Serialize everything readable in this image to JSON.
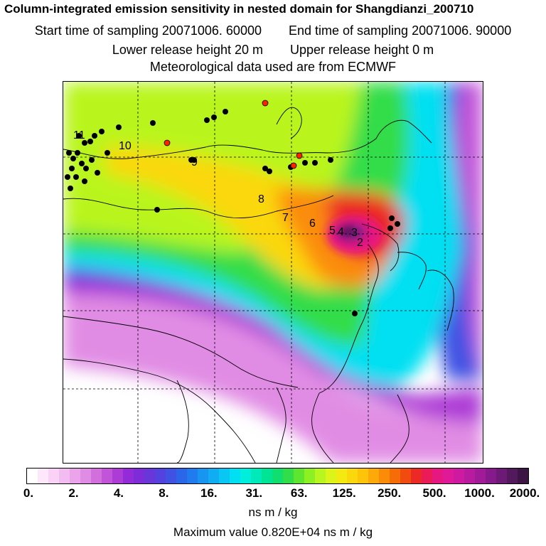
{
  "title": {
    "line1": "Column-integrated emission sensitivity in nested domain for Shangdianzi_200710",
    "start_label": "Start time of sampling 20071006. 60000",
    "end_label": "End time of sampling 20071006. 90000",
    "lower_label": "Lower release height   20 m",
    "upper_label": "Upper release height    0 m",
    "met_label": "Meteorological data used are from ECMWF"
  },
  "map": {
    "track_labels": [
      "11",
      "10",
      "9",
      "8",
      "7",
      "6",
      "5",
      "4",
      "3",
      "2"
    ],
    "colors": {
      "land_outline": "#000000",
      "black_marker": "#000000",
      "red_marker": "#ff2200",
      "grid": "#000000"
    }
  },
  "colorbar": {
    "colors": [
      "#ffffff",
      "#fde8fb",
      "#f9d2f6",
      "#f3bcf0",
      "#eba3ea",
      "#e18ce4",
      "#d36fdd",
      "#c154d8",
      "#ad3bd6",
      "#942bd9",
      "#7d2cd7",
      "#6936da",
      "#5342de",
      "#3f52e3",
      "#2c66e8",
      "#1f7bee",
      "#1894f1",
      "#11adf3",
      "#0ac6f3",
      "#00e0f2",
      "#00eedc",
      "#00eab9",
      "#00e496",
      "#10df70",
      "#31dd49",
      "#5ee52e",
      "#8df023",
      "#b9f51e",
      "#dcf419",
      "#f4ea12",
      "#fad80d",
      "#fdc40a",
      "#fdaa08",
      "#fb8c07",
      "#f66d08",
      "#f14b10",
      "#eb2a25",
      "#ea1b56",
      "#e71781",
      "#de1a98",
      "#cd1aa0",
      "#b81aa0",
      "#a01a9a",
      "#861a8a",
      "#6c1a75",
      "#52195c",
      "#3c1545"
    ],
    "labels": [
      "0.",
      "2.",
      "4.",
      "8.",
      "16.",
      "31.",
      "63.",
      "125.",
      "250.",
      "500.",
      "1000.",
      "2000."
    ],
    "unit": "ns m / kg"
  },
  "max_value_text": "Maximum value  0.820E+04 ns m / kg"
}
